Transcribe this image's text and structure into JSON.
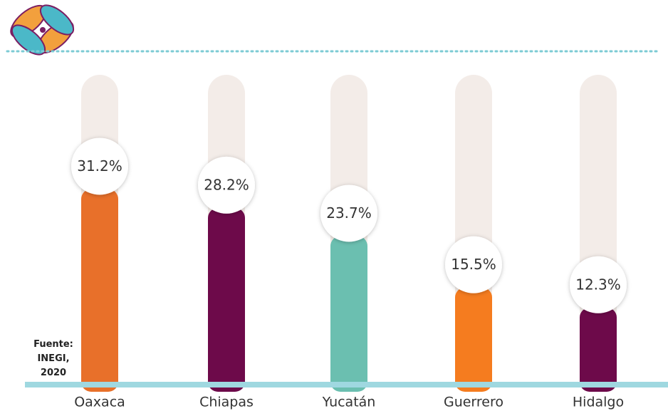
{
  "chart_data": {
    "type": "bar",
    "categories": [
      "Oaxaca",
      "Chiapas",
      "Yucatán",
      "Guerrero",
      "Hidalgo"
    ],
    "values": [
      31.2,
      28.2,
      23.7,
      15.5,
      12.3
    ],
    "value_labels": [
      "31.2%",
      "28.2%",
      "23.7%",
      "15.5%",
      "12.3%"
    ],
    "colors": [
      "#e8702a",
      "#6d0a4a",
      "#6bbfb0",
      "#f57c1f",
      "#6d0a4a"
    ],
    "source": "Fuente: INEGI, 2020"
  }
}
